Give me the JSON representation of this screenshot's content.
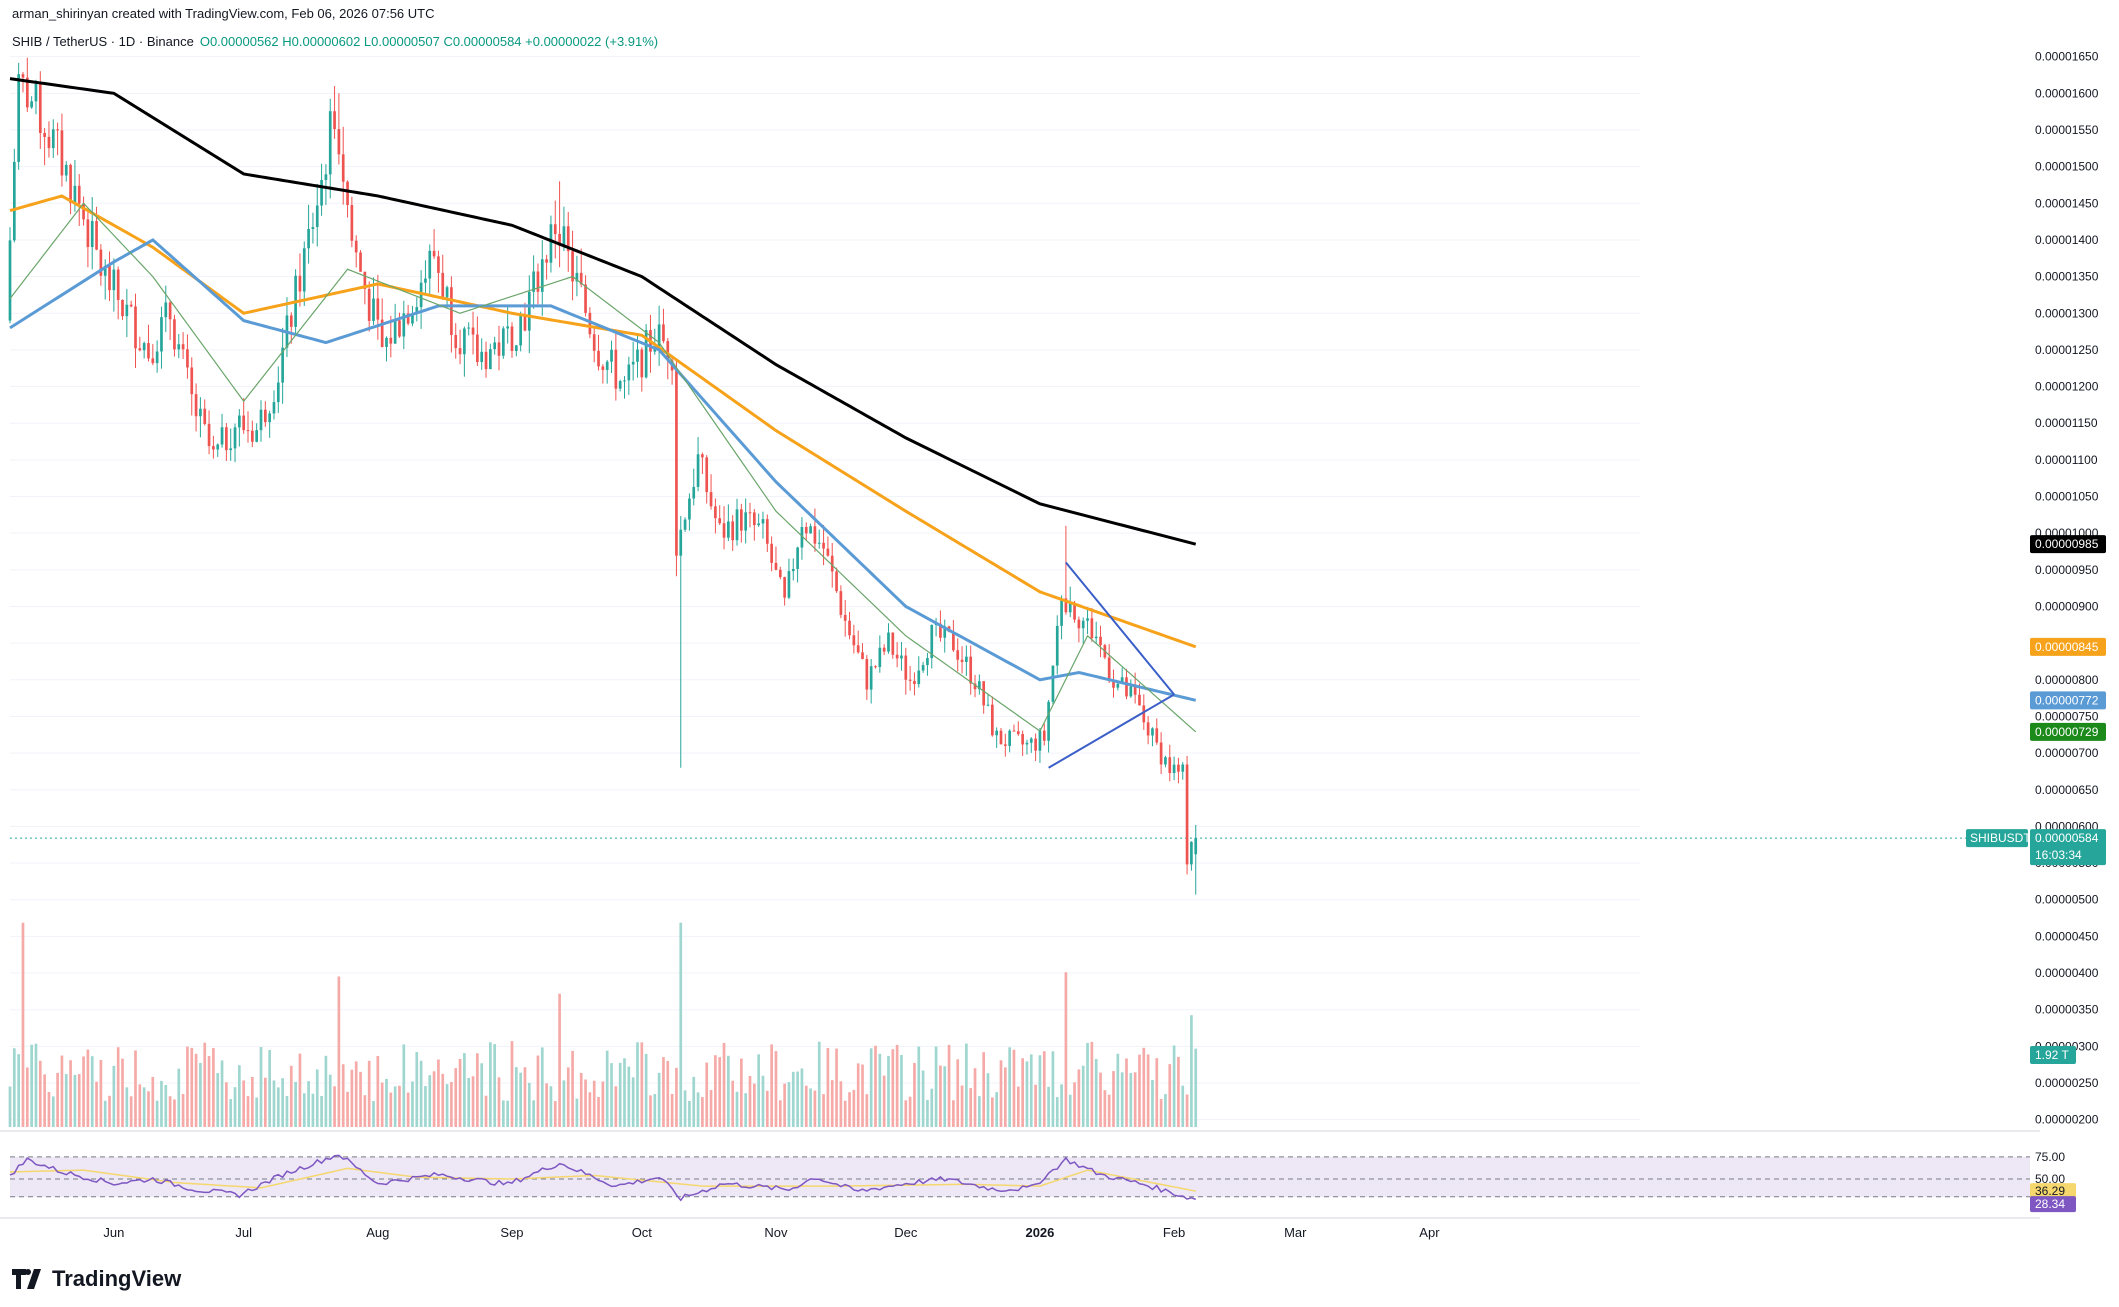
{
  "header": {
    "attribution": "arman_shirinyan created with TradingView.com, Feb 06, 2026 07:56 UTC",
    "symbol": "SHIB / TetherUS · 1D · Binance",
    "ohlc": "O0.00000562 H0.00000602 L0.00000507 C0.00000584 +0.00000022 (+3.91%)"
  },
  "brand": {
    "logo_text": "TradingView"
  },
  "colors": {
    "up": "#26a69a",
    "down": "#ef5350",
    "ma200": "#000000",
    "ma100": "#f7a21b",
    "ma50": "#5b9bd5",
    "ma20": "#6aa56a",
    "trend": "#3b5fc9",
    "rsi": "#7e57c2",
    "rsi_ma": "#f5d76e"
  },
  "price_axis": {
    "ticks": [
      "0.00001650",
      "0.00001600",
      "0.00001550",
      "0.00001500",
      "0.00001450",
      "0.00001400",
      "0.00001350",
      "0.00001300",
      "0.00001250",
      "0.00001200",
      "0.00001150",
      "0.00001100",
      "0.00001050",
      "0.00001000",
      "0.00000950",
      "0.00000900",
      "0.00000850",
      "0.00000800",
      "0.00000750",
      "0.00000700",
      "0.00000650",
      "0.00000600",
      "0.00000550",
      "0.00000500",
      "0.00000450",
      "0.00000400",
      "0.00000350",
      "0.00000300",
      "0.00000250",
      "0.00000200"
    ],
    "tags": [
      {
        "text": "0.00000985",
        "price": 9.85e-06,
        "bg": "#000000"
      },
      {
        "text": "0.00000845",
        "price": 8.45e-06,
        "bg": "#f7a21b"
      },
      {
        "text": "0.00000772",
        "price": 7.72e-06,
        "bg": "#5b9bd5"
      },
      {
        "text": "0.00000729",
        "price": 7.29e-06,
        "bg": "#1b8a1b"
      }
    ],
    "last_symbol": "SHIBUSDT",
    "last_price": "0.00000584",
    "countdown": "16:03:34",
    "volume_tag": "1.92 T"
  },
  "rsi_axis": {
    "ticks": [
      "75.00",
      "50.00"
    ],
    "rsi_ma_value": "36.29",
    "rsi_value": "28.34"
  },
  "time_axis": [
    {
      "label": "Jun",
      "date": "2025-06-01",
      "bold": false
    },
    {
      "label": "Jul",
      "date": "2025-07-01",
      "bold": false
    },
    {
      "label": "Aug",
      "date": "2025-08-01",
      "bold": false
    },
    {
      "label": "Sep",
      "date": "2025-09-01",
      "bold": false
    },
    {
      "label": "Oct",
      "date": "2025-10-01",
      "bold": false
    },
    {
      "label": "Nov",
      "date": "2025-11-01",
      "bold": false
    },
    {
      "label": "Dec",
      "date": "2025-12-01",
      "bold": false
    },
    {
      "label": "2026",
      "date": "2026-01-01",
      "bold": true
    },
    {
      "label": "Feb",
      "date": "2026-02-01",
      "bold": false
    },
    {
      "label": "Mar",
      "date": "2026-03-01",
      "bold": false
    },
    {
      "label": "Apr",
      "date": "2026-04-01",
      "bold": false
    }
  ],
  "chart_data": {
    "type": "candlestick",
    "title": "SHIB / TetherUS · 1D · Binance",
    "x_range": [
      "2025-05-08",
      "2026-04-15"
    ],
    "ylim": [
      1.9e-06,
      1.67e-05
    ],
    "price_anchors": [
      [
        "2025-05-08",
        1.29e-05
      ],
      [
        "2025-05-11",
        1.62e-05
      ],
      [
        "2025-05-15",
        1.58e-05
      ],
      [
        "2025-05-20",
        1.52e-05
      ],
      [
        "2025-05-25",
        1.45e-05
      ],
      [
        "2025-05-30",
        1.36e-05
      ],
      [
        "2025-06-05",
        1.3e-05
      ],
      [
        "2025-06-10",
        1.25e-05
      ],
      [
        "2025-06-15",
        1.3e-05
      ],
      [
        "2025-06-20",
        1.18e-05
      ],
      [
        "2025-06-25",
        1.1e-05
      ],
      [
        "2025-06-30",
        1.15e-05
      ],
      [
        "2025-07-05",
        1.14e-05
      ],
      [
        "2025-07-10",
        1.22e-05
      ],
      [
        "2025-07-15",
        1.35e-05
      ],
      [
        "2025-07-20",
        1.48e-05
      ],
      [
        "2025-07-23",
        1.58e-05
      ],
      [
        "2025-07-27",
        1.4e-05
      ],
      [
        "2025-08-03",
        1.25e-05
      ],
      [
        "2025-08-10",
        1.32e-05
      ],
      [
        "2025-08-15",
        1.38e-05
      ],
      [
        "2025-08-20",
        1.28e-05
      ],
      [
        "2025-08-25",
        1.24e-05
      ],
      [
        "2025-08-31",
        1.26e-05
      ],
      [
        "2025-09-05",
        1.3e-05
      ],
      [
        "2025-09-12",
        1.42e-05
      ],
      [
        "2025-09-17",
        1.34e-05
      ],
      [
        "2025-09-22",
        1.25e-05
      ],
      [
        "2025-09-28",
        1.2e-05
      ],
      [
        "2025-10-05",
        1.27e-05
      ],
      [
        "2025-10-09",
        1.25e-05
      ],
      [
        "2025-10-10",
        9.8e-06
      ],
      [
        "2025-10-15",
        1.1e-05
      ],
      [
        "2025-10-20",
        1e-05
      ],
      [
        "2025-10-25",
        1.02e-05
      ],
      [
        "2025-10-30",
        1e-05
      ],
      [
        "2025-11-04",
        9e-06
      ],
      [
        "2025-11-08",
        1.02e-05
      ],
      [
        "2025-11-13",
        9.8e-06
      ],
      [
        "2025-11-18",
        8.8e-06
      ],
      [
        "2025-11-23",
        8e-06
      ],
      [
        "2025-11-28",
        8.5e-06
      ],
      [
        "2025-12-03",
        8e-06
      ],
      [
        "2025-12-08",
        8.6e-06
      ],
      [
        "2025-12-13",
        8.5e-06
      ],
      [
        "2025-12-18",
        8e-06
      ],
      [
        "2025-12-23",
        7.2e-06
      ],
      [
        "2025-12-30",
        7.1e-06
      ],
      [
        "2026-01-03",
        7.2e-06
      ],
      [
        "2026-01-07",
        9.2e-06
      ],
      [
        "2026-01-12",
        8.8e-06
      ],
      [
        "2026-01-15",
        8.6e-06
      ],
      [
        "2026-01-19",
        8e-06
      ],
      [
        "2026-01-24",
        7.7e-06
      ],
      [
        "2026-01-28",
        7.2e-06
      ],
      [
        "2026-02-01",
        6.8e-06
      ],
      [
        "2026-02-04",
        6.7e-06
      ],
      [
        "2026-02-05",
        5.6e-06
      ],
      [
        "2026-02-06",
        5.84e-06
      ]
    ],
    "notable_wicks": [
      {
        "date": "2025-10-10",
        "low": 6.8e-06
      },
      {
        "date": "2025-09-12",
        "high": 1.48e-05
      },
      {
        "date": "2025-07-23",
        "high": 1.6e-05
      },
      {
        "date": "2026-01-07",
        "high": 1.01e-05
      },
      {
        "date": "2026-02-06",
        "low": 5.07e-06,
        "high": 6.02e-06
      }
    ],
    "last_candle": {
      "date": "2026-02-06",
      "open": 5.62e-06,
      "high": 6.02e-06,
      "low": 5.07e-06,
      "close": 5.84e-06
    },
    "ma_lines": [
      {
        "color": "#000000",
        "points": [
          [
            "2025-05-08",
            1.62e-05
          ],
          [
            "2025-06-01",
            1.6e-05
          ],
          [
            "2025-07-01",
            1.49e-05
          ],
          [
            "2025-08-01",
            1.46e-05
          ],
          [
            "2025-09-01",
            1.42e-05
          ],
          [
            "2025-10-01",
            1.35e-05
          ],
          [
            "2025-11-01",
            1.23e-05
          ],
          [
            "2025-12-01",
            1.13e-05
          ],
          [
            "2026-01-01",
            1.04e-05
          ],
          [
            "2026-02-06",
            9.85e-06
          ]
        ]
      },
      {
        "color": "#f7a21b",
        "points": [
          [
            "2025-05-08",
            1.44e-05
          ],
          [
            "2025-05-20",
            1.46e-05
          ],
          [
            "2025-06-10",
            1.39e-05
          ],
          [
            "2025-07-01",
            1.3e-05
          ],
          [
            "2025-08-01",
            1.34e-05
          ],
          [
            "2025-09-01",
            1.3e-05
          ],
          [
            "2025-10-01",
            1.27e-05
          ],
          [
            "2025-11-01",
            1.14e-05
          ],
          [
            "2025-12-01",
            1.03e-05
          ],
          [
            "2026-01-01",
            9.2e-06
          ],
          [
            "2026-02-06",
            8.45e-06
          ]
        ]
      },
      {
        "color": "#5b9bd5",
        "points": [
          [
            "2025-05-08",
            1.28e-05
          ],
          [
            "2025-06-01",
            1.37e-05
          ],
          [
            "2025-06-10",
            1.4e-05
          ],
          [
            "2025-07-01",
            1.29e-05
          ],
          [
            "2025-07-20",
            1.26e-05
          ],
          [
            "2025-08-15",
            1.31e-05
          ],
          [
            "2025-09-10",
            1.31e-05
          ],
          [
            "2025-10-05",
            1.25e-05
          ],
          [
            "2025-11-01",
            1.07e-05
          ],
          [
            "2025-12-01",
            9e-06
          ],
          [
            "2026-01-01",
            8e-06
          ],
          [
            "2026-01-10",
            8.1e-06
          ],
          [
            "2026-02-06",
            7.72e-06
          ]
        ]
      },
      {
        "color": "#6aa56a",
        "points": [
          [
            "2025-05-08",
            1.32e-05
          ],
          [
            "2025-05-25",
            1.45e-05
          ],
          [
            "2025-06-10",
            1.35e-05
          ],
          [
            "2025-07-01",
            1.18e-05
          ],
          [
            "2025-07-25",
            1.36e-05
          ],
          [
            "2025-08-20",
            1.3e-05
          ],
          [
            "2025-09-15",
            1.35e-05
          ],
          [
            "2025-10-05",
            1.26e-05
          ],
          [
            "2025-11-01",
            1.03e-05
          ],
          [
            "2025-12-01",
            8.6e-06
          ],
          [
            "2026-01-01",
            7.3e-06
          ],
          [
            "2026-01-12",
            8.6e-06
          ],
          [
            "2026-02-06",
            7.29e-06
          ]
        ]
      }
    ],
    "trend_lines": [
      {
        "from": [
          "2026-01-07",
          9.6e-06
        ],
        "to": [
          "2026-02-01",
          7.8e-06
        ]
      },
      {
        "from": [
          "2026-01-03",
          6.8e-06
        ],
        "to": [
          "2026-02-01",
          7.8e-06
        ]
      }
    ],
    "volume": {
      "ylim": [
        0,
        1.0
      ],
      "description_scale": "relative",
      "spikes": [
        [
          "2025-05-11",
          0.95
        ],
        [
          "2025-10-10",
          0.95
        ],
        [
          "2026-01-07",
          0.72
        ],
        [
          "2026-02-05",
          0.52
        ],
        [
          "2025-07-23",
          0.7
        ],
        [
          "2025-09-12",
          0.62
        ]
      ]
    },
    "rsi": {
      "levels": [
        75,
        50,
        30
      ],
      "points": [
        [
          "2025-05-08",
          55
        ],
        [
          "2025-05-12",
          72
        ],
        [
          "2025-05-20",
          58
        ],
        [
          "2025-06-01",
          45
        ],
        [
          "2025-06-10",
          50
        ],
        [
          "2025-06-20",
          38
        ],
        [
          "2025-06-30",
          32
        ],
        [
          "2025-07-10",
          55
        ],
        [
          "2025-07-23",
          78
        ],
        [
          "2025-08-01",
          45
        ],
        [
          "2025-08-15",
          55
        ],
        [
          "2025-08-31",
          44
        ],
        [
          "2025-09-12",
          68
        ],
        [
          "2025-09-25",
          42
        ],
        [
          "2025-10-05",
          52
        ],
        [
          "2025-10-10",
          28
        ],
        [
          "2025-10-20",
          45
        ],
        [
          "2025-11-04",
          38
        ],
        [
          "2025-11-10",
          52
        ],
        [
          "2025-11-20",
          36
        ],
        [
          "2025-12-01",
          45
        ],
        [
          "2025-12-10",
          50
        ],
        [
          "2025-12-22",
          38
        ],
        [
          "2025-12-30",
          40
        ],
        [
          "2026-01-07",
          72
        ],
        [
          "2026-01-15",
          55
        ],
        [
          "2026-01-25",
          44
        ],
        [
          "2026-02-05",
          28
        ],
        [
          "2026-02-06",
          28.34
        ]
      ],
      "ma_points": [
        [
          "2025-05-08",
          58
        ],
        [
          "2025-05-25",
          60
        ],
        [
          "2025-06-15",
          46
        ],
        [
          "2025-07-05",
          40
        ],
        [
          "2025-07-25",
          62
        ],
        [
          "2025-08-10",
          52
        ],
        [
          "2025-09-01",
          50
        ],
        [
          "2025-09-20",
          54
        ],
        [
          "2025-10-15",
          42
        ],
        [
          "2025-11-15",
          42
        ],
        [
          "2025-12-15",
          44
        ],
        [
          "2026-01-01",
          42
        ],
        [
          "2026-01-12",
          60
        ],
        [
          "2026-02-06",
          36.29
        ]
      ]
    }
  }
}
